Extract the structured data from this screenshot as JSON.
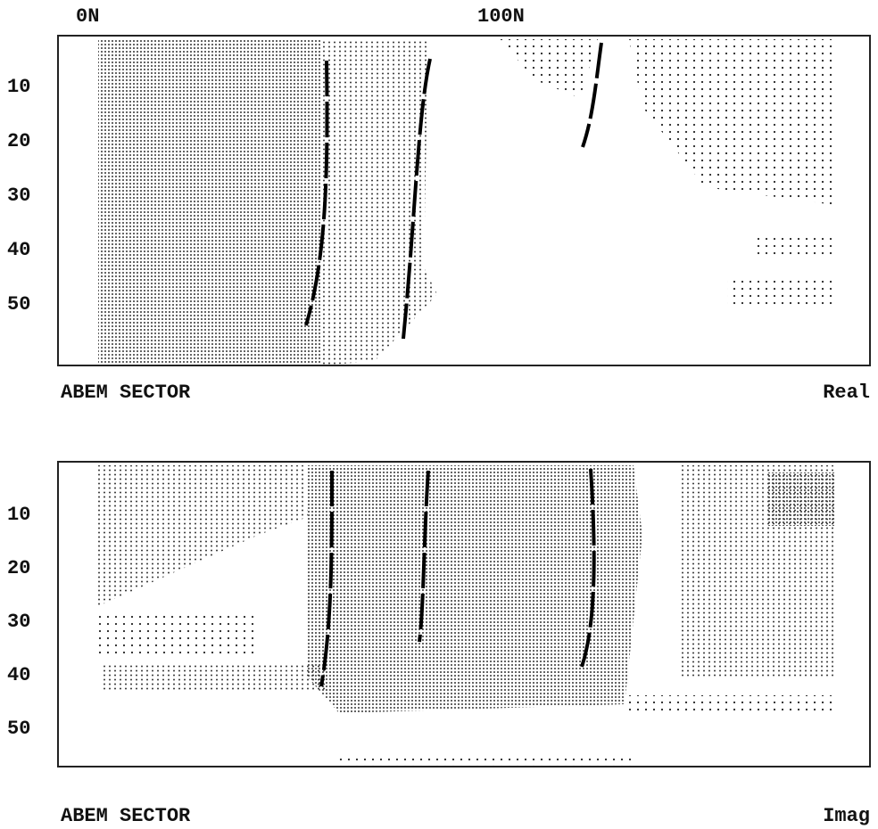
{
  "top_axis": {
    "labels": [
      "0N",
      "100N"
    ]
  },
  "panels": [
    {
      "y_labels": [
        "10",
        "20",
        "30",
        "40",
        "50"
      ],
      "left_caption": "ABEM SECTOR",
      "right_caption": "Real"
    },
    {
      "y_labels": [
        "10",
        "20",
        "30",
        "40",
        "50"
      ],
      "left_caption": "ABEM SECTOR",
      "right_caption": "Imag"
    }
  ]
}
